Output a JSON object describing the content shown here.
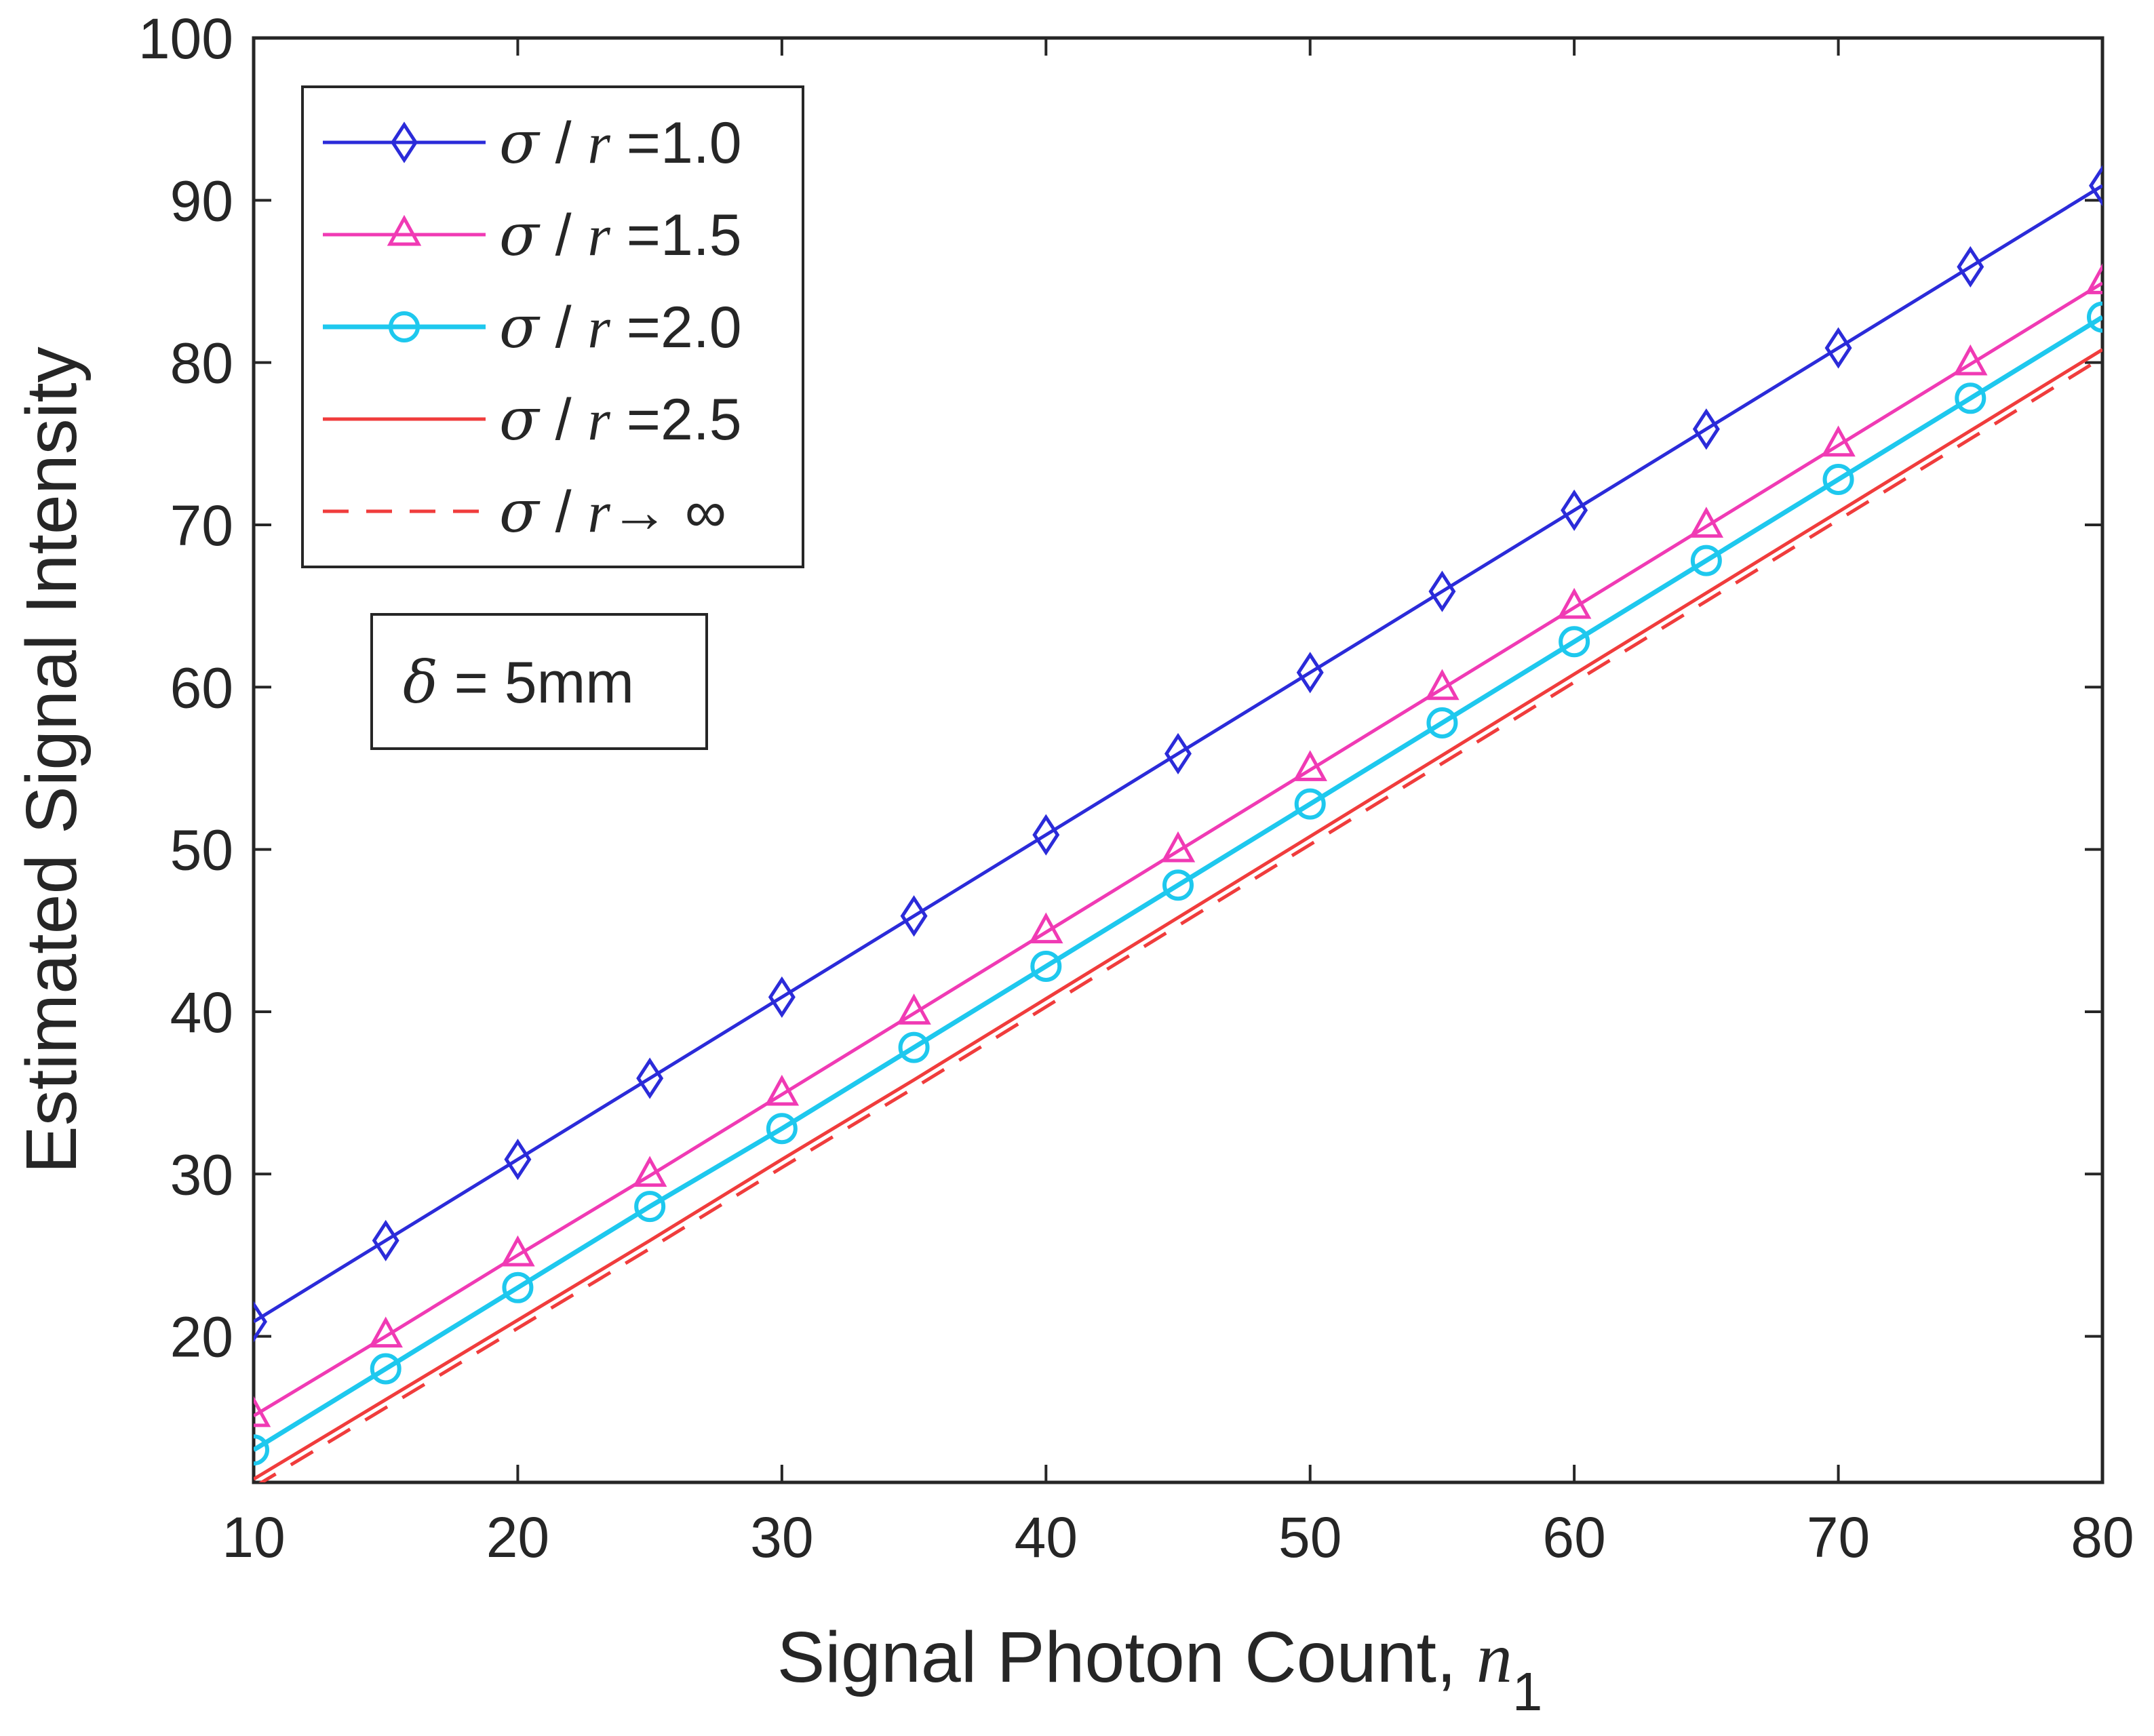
{
  "chart_data": {
    "type": "line",
    "title": "",
    "xlabel": "Signal Photon Count, ",
    "xlabel_var": "n",
    "xlabel_sub": "1",
    "ylabel": "Estimated Signal Intensity",
    "xlim": [
      10,
      80
    ],
    "ylim": [
      11,
      100
    ],
    "xticks": [
      10,
      20,
      30,
      40,
      50,
      60,
      70,
      80
    ],
    "yticks": [
      20,
      30,
      40,
      50,
      60,
      70,
      80,
      90,
      100
    ],
    "x": [
      10,
      15,
      20,
      25,
      30,
      35,
      40,
      45,
      50,
      55,
      60,
      65,
      70,
      75,
      80
    ],
    "series": [
      {
        "name": "σ / r =1.0",
        "label_sym": "σ",
        "label_mid": " / ",
        "label_var": "r",
        "label_tail": " =1.0",
        "color": "#2b2bd9",
        "marker": "diamond",
        "dash": "",
        "values": [
          20.9,
          25.9,
          30.9,
          35.9,
          40.9,
          45.9,
          50.9,
          55.9,
          60.9,
          65.9,
          70.9,
          75.9,
          80.9,
          85.9,
          90.9
        ]
      },
      {
        "name": "σ / r =1.5",
        "label_sym": "σ",
        "label_mid": " / ",
        "label_var": "r",
        "label_tail": " =1.5",
        "color": "#f03ab4",
        "marker": "triangle",
        "dash": "",
        "values": [
          15.1,
          20.0,
          25.0,
          29.9,
          34.9,
          39.9,
          44.9,
          49.9,
          54.9,
          59.9,
          64.9,
          69.9,
          74.9,
          79.9,
          84.9
        ]
      },
      {
        "name": "σ / r =2.0",
        "label_sym": "σ",
        "label_mid": " / ",
        "label_var": "r",
        "label_tail": " =2.0",
        "color": "#1ec8ee",
        "marker": "circle",
        "dash": "",
        "values": [
          13.0,
          18.0,
          23.0,
          28.0,
          32.8,
          37.8,
          42.8,
          47.8,
          52.8,
          57.8,
          62.8,
          67.8,
          72.8,
          77.8,
          82.8
        ]
      },
      {
        "name": "σ / r =2.5",
        "label_sym": "σ",
        "label_mid": " / ",
        "label_var": "r",
        "label_tail": " =2.5",
        "color": "#f03c3c",
        "marker": "none",
        "dash": "",
        "values": [
          11.2,
          16.1,
          21.0,
          25.9,
          30.9,
          35.8,
          40.8,
          45.8,
          50.8,
          55.8,
          60.8,
          65.8,
          70.8,
          75.8,
          80.8
        ]
      },
      {
        "name": "σ / r→ ∞",
        "label_sym": "σ",
        "label_mid": " / ",
        "label_var": "r",
        "label_tail": "→ ∞",
        "color": "#f03c3c",
        "marker": "none",
        "dash": "38,26",
        "values": [
          10.7,
          15.6,
          20.5,
          25.4,
          30.4,
          35.3,
          40.3,
          45.3,
          50.3,
          55.3,
          60.3,
          65.3,
          70.3,
          75.3,
          80.3
        ]
      }
    ],
    "annotation": {
      "sym": "δ",
      "text": " = 5mm"
    },
    "legend_position": "top-left",
    "grid": false
  }
}
